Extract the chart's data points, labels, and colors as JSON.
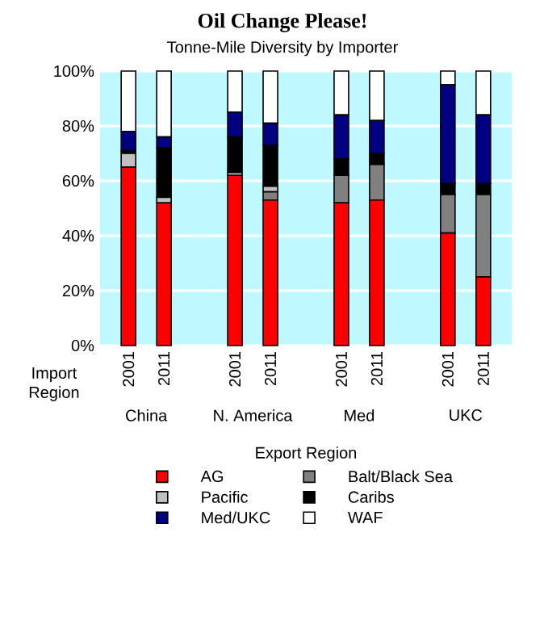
{
  "chart_data": {
    "type": "bar",
    "title": "Oil Change Please!",
    "subtitle": "Tonne-Mile Diversity by Importer",
    "xlabel": "Import Region",
    "legend_title": "Export Region",
    "categories": [
      "2001",
      "2011",
      "2001",
      "2011",
      "2001",
      "2011",
      "2001",
      "2011"
    ],
    "annotations": [
      "China",
      "N. America",
      "Med",
      "UKC"
    ],
    "stacked": true,
    "series": [
      {
        "name": "AG",
        "color": "#ff0000",
        "values": [
          65,
          52,
          62,
          53,
          52,
          53,
          41,
          25
        ]
      },
      {
        "name": "Balt/Black Sea",
        "color": "#808080",
        "values": [
          0,
          0,
          0,
          3,
          10,
          13,
          14,
          30
        ]
      },
      {
        "name": "Pacific",
        "color": "#c0c0c0",
        "values": [
          5,
          2,
          1,
          2,
          0,
          0,
          0,
          0
        ]
      },
      {
        "name": "Caribs",
        "color": "#000000",
        "values": [
          1,
          18,
          13,
          15,
          6,
          4,
          4,
          4
        ]
      },
      {
        "name": "Med/UKC",
        "color": "#000080",
        "values": [
          7,
          4,
          9,
          8,
          16,
          12,
          36,
          25
        ]
      },
      {
        "name": "WAF",
        "color": "#ffffff",
        "values": [
          22,
          24,
          15,
          19,
          16,
          18,
          5,
          16
        ]
      }
    ],
    "ylim": [
      0,
      100
    ],
    "yticks": [
      {
        "value": 0,
        "label": "0%"
      },
      {
        "value": 20,
        "label": "20%"
      },
      {
        "value": 40,
        "label": "40%"
      },
      {
        "value": 60,
        "label": "60%"
      },
      {
        "value": 80,
        "label": "80%"
      },
      {
        "value": 100,
        "label": "100%"
      }
    ],
    "grid": true,
    "legend": "bottom"
  }
}
